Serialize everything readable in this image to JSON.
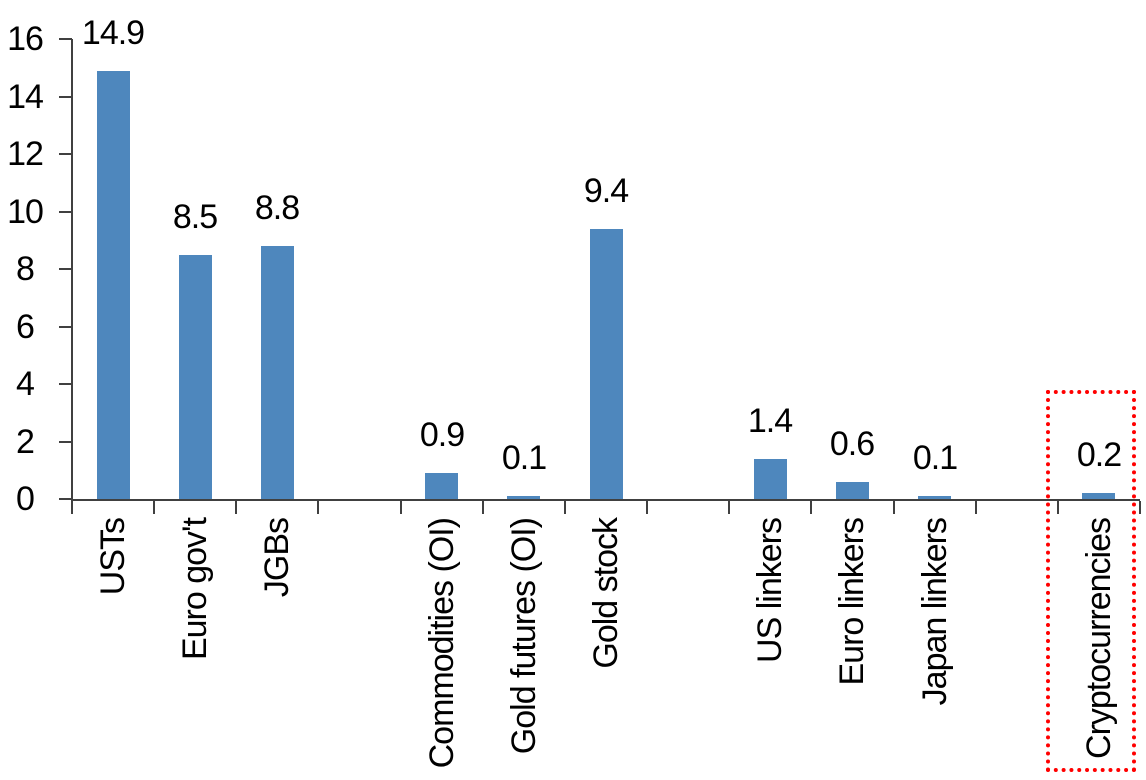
{
  "chart_data": {
    "type": "bar",
    "title": "",
    "xlabel": "",
    "ylabel": "",
    "categories": [
      "USTs",
      "Euro gov't",
      "JGBs",
      null,
      "Commodities (OI)",
      "Gold futures (OI)",
      "Gold stock",
      null,
      "US linkers",
      "Euro linkers",
      "Japan linkers",
      null,
      "Cryptocurrencies"
    ],
    "values": [
      14.9,
      8.5,
      8.8,
      null,
      0.9,
      0.1,
      9.4,
      null,
      1.4,
      0.6,
      0.1,
      null,
      0.2
    ],
    "data_labels": [
      "14.9",
      "8.5",
      "8.8",
      null,
      "0.9",
      "0.1",
      "9.4",
      null,
      "1.4",
      "0.6",
      "0.1",
      null,
      "0.2"
    ],
    "ylim": [
      0,
      16
    ],
    "yticks": [
      0,
      2,
      4,
      6,
      8,
      10,
      12,
      14,
      16
    ],
    "grid": false,
    "legend": false,
    "x_labels_rotated_degrees": 90,
    "bar_color": "#4E87BD",
    "axis_color": "#404040",
    "text_color": "#000000",
    "highlight": {
      "category": "Cryptocurrencies",
      "shape": "dotted-rectangle",
      "color": "#FF0000"
    }
  }
}
